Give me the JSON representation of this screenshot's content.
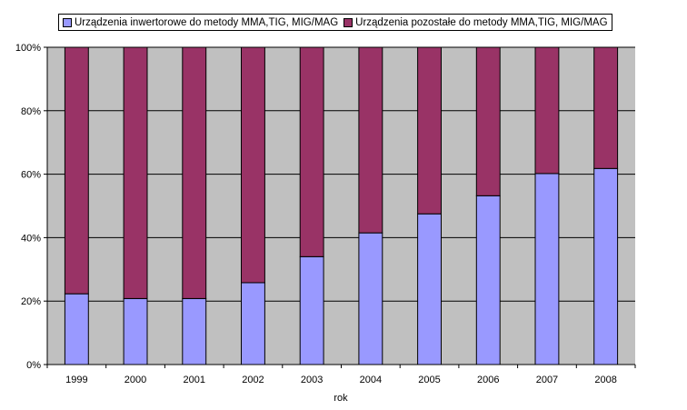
{
  "chart_data": {
    "type": "bar",
    "stacked": true,
    "percent": true,
    "categories": [
      "1999",
      "2000",
      "2001",
      "2002",
      "2003",
      "2004",
      "2005",
      "2006",
      "2007",
      "2008"
    ],
    "series": [
      {
        "name": "Urządzenia inwertorowe do metody MMA,TIG, MIG/MAG",
        "color": "#9999ff",
        "values": [
          22.3,
          20.8,
          20.8,
          25.8,
          34.0,
          41.5,
          47.5,
          53.2,
          60.2,
          61.8
        ]
      },
      {
        "name": "Urządzenia pozostałe do metody MMA,TIG, MIG/MAG",
        "color": "#993366",
        "values": [
          77.7,
          79.2,
          79.2,
          74.2,
          66.0,
          58.5,
          52.5,
          46.8,
          39.8,
          38.2
        ]
      }
    ],
    "xlabel": "rok",
    "ylabel": "",
    "ylim": [
      0,
      100
    ],
    "yticks": [
      "0%",
      "20%",
      "40%",
      "60%",
      "80%",
      "100%"
    ],
    "grid": true,
    "legend": "top",
    "plot_background": "#c0c0c0"
  }
}
